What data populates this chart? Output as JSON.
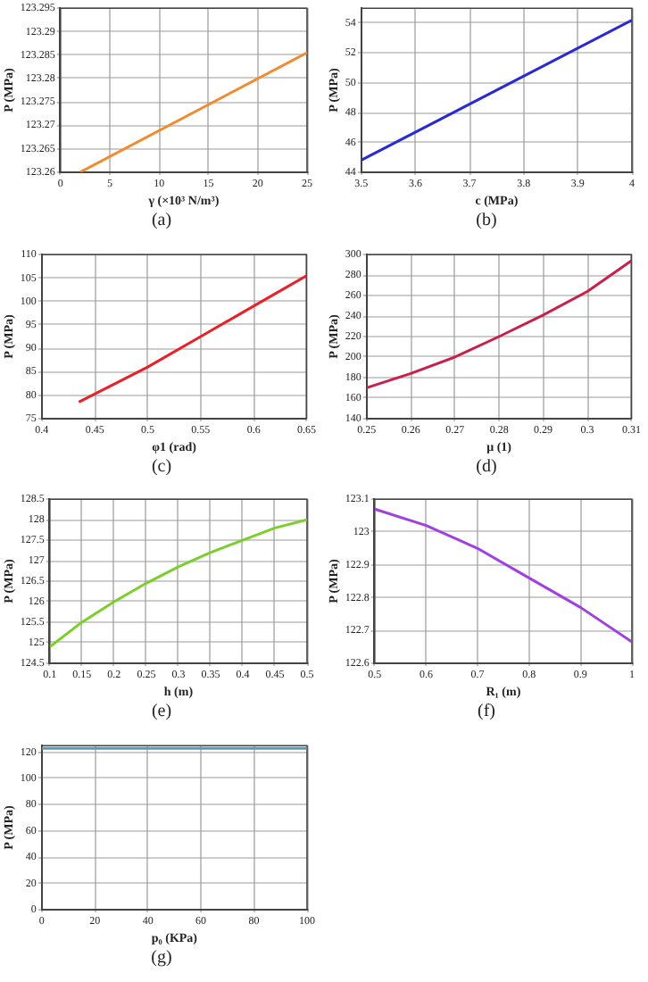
{
  "chart_data": [
    {
      "type": "line",
      "xlabel": "γ (×10³ N/m³)",
      "ylabel": "P (MPa)",
      "annotations": [
        "(a)"
      ],
      "grid": true,
      "xlim": [
        0,
        25
      ],
      "xticks": [
        0,
        5,
        10,
        15,
        20,
        25
      ],
      "ylim": [
        123.26,
        123.295
      ],
      "yticks": [
        123.26,
        123.265,
        123.27,
        123.275,
        123.28,
        123.285,
        123.29,
        123.295
      ],
      "series": [
        {
          "color": "#f28a2e",
          "x": [
            2,
            25
          ],
          "values": [
            123.26,
            123.2855
          ]
        }
      ]
    },
    {
      "type": "line",
      "xlabel": "c (MPa)",
      "ylabel": "P (MPa)",
      "annotations": [
        "(b)"
      ],
      "grid": true,
      "xlim": [
        3.5,
        4
      ],
      "xticks": [
        3.5,
        3.6,
        3.7,
        3.8,
        3.9,
        4
      ],
      "ylim": [
        44,
        55
      ],
      "yticks": [
        44,
        46,
        48,
        50,
        52,
        54
      ],
      "series": [
        {
          "color": "#2a2ad0",
          "x": [
            3.5,
            4
          ],
          "values": [
            44.8,
            54.2
          ]
        }
      ]
    },
    {
      "type": "line",
      "xlabel": "φ1 (rad)",
      "ylabel": "P (MPa)",
      "annotations": [
        "(c)"
      ],
      "grid": true,
      "xlim": [
        0.4,
        0.65
      ],
      "xticks": [
        0.4,
        0.45,
        0.5,
        0.55,
        0.6,
        0.65
      ],
      "ylim": [
        75,
        110
      ],
      "yticks": [
        75,
        80,
        85,
        90,
        95,
        100,
        105,
        110
      ],
      "series": [
        {
          "color": "#e8202a",
          "x": [
            0.435,
            0.5,
            0.55,
            0.6,
            0.65
          ],
          "values": [
            78.5,
            86,
            92.5,
            99,
            105.5
          ]
        }
      ]
    },
    {
      "type": "line",
      "xlabel": "μ (1)",
      "ylabel": "P (MPa)",
      "annotations": [
        "(d)"
      ],
      "grid": true,
      "xlim": [
        0.25,
        0.31
      ],
      "xticks": [
        0.25,
        0.26,
        0.27,
        0.28,
        0.29,
        0.3,
        0.31
      ],
      "ylim": [
        140,
        300
      ],
      "yticks": [
        140,
        160,
        180,
        200,
        220,
        240,
        260,
        280,
        300
      ],
      "series": [
        {
          "color": "#c8204a",
          "x": [
            0.25,
            0.26,
            0.27,
            0.28,
            0.29,
            0.3,
            0.31
          ],
          "values": [
            170,
            184,
            200,
            220,
            241,
            264,
            294
          ]
        }
      ]
    },
    {
      "type": "line",
      "xlabel": "h (m)",
      "ylabel": "P (MPa)",
      "annotations": [
        "(e)"
      ],
      "grid": true,
      "xlim": [
        0.1,
        0.5
      ],
      "xticks": [
        0.1,
        0.15,
        0.2,
        0.25,
        0.3,
        0.35,
        0.4,
        0.45,
        0.5
      ],
      "ylim": [
        124.5,
        128.5
      ],
      "yticks": [
        124.5,
        125,
        125.5,
        126,
        126.5,
        127,
        127.5,
        128,
        128.5
      ],
      "series": [
        {
          "color": "#7ccf2a",
          "x": [
            0.1,
            0.15,
            0.2,
            0.25,
            0.3,
            0.35,
            0.4,
            0.45,
            0.5
          ],
          "values": [
            124.9,
            125.5,
            126.0,
            126.45,
            126.85,
            127.2,
            127.5,
            127.8,
            128.0
          ]
        }
      ]
    },
    {
      "type": "line",
      "xlabel": "R₁ (m)",
      "ylabel": "P (MPa)",
      "annotations": [
        "(f)"
      ],
      "grid": true,
      "xlim": [
        0.5,
        1
      ],
      "xticks": [
        0.5,
        0.6,
        0.7,
        0.8,
        0.9,
        1
      ],
      "ylim": [
        122.6,
        123.1
      ],
      "yticks": [
        122.6,
        122.7,
        122.8,
        122.9,
        123,
        123.1
      ],
      "series": [
        {
          "color": "#a040e0",
          "x": [
            0.5,
            0.6,
            0.7,
            0.8,
            0.9,
            1
          ],
          "values": [
            123.07,
            123.02,
            122.95,
            122.86,
            122.77,
            122.665
          ]
        }
      ]
    },
    {
      "type": "line",
      "xlabel": "p₀ (KPa)",
      "ylabel": "P (MPa)",
      "annotations": [
        "(g)"
      ],
      "grid": true,
      "xlim": [
        0,
        100
      ],
      "xticks": [
        0,
        20,
        40,
        60,
        80,
        100
      ],
      "ylim": [
        0,
        125
      ],
      "yticks": [
        0,
        20,
        40,
        60,
        80,
        100,
        120
      ],
      "series": [
        {
          "color": "#5a9ab0",
          "x": [
            0,
            100
          ],
          "values": [
            123,
            123
          ]
        }
      ]
    }
  ]
}
